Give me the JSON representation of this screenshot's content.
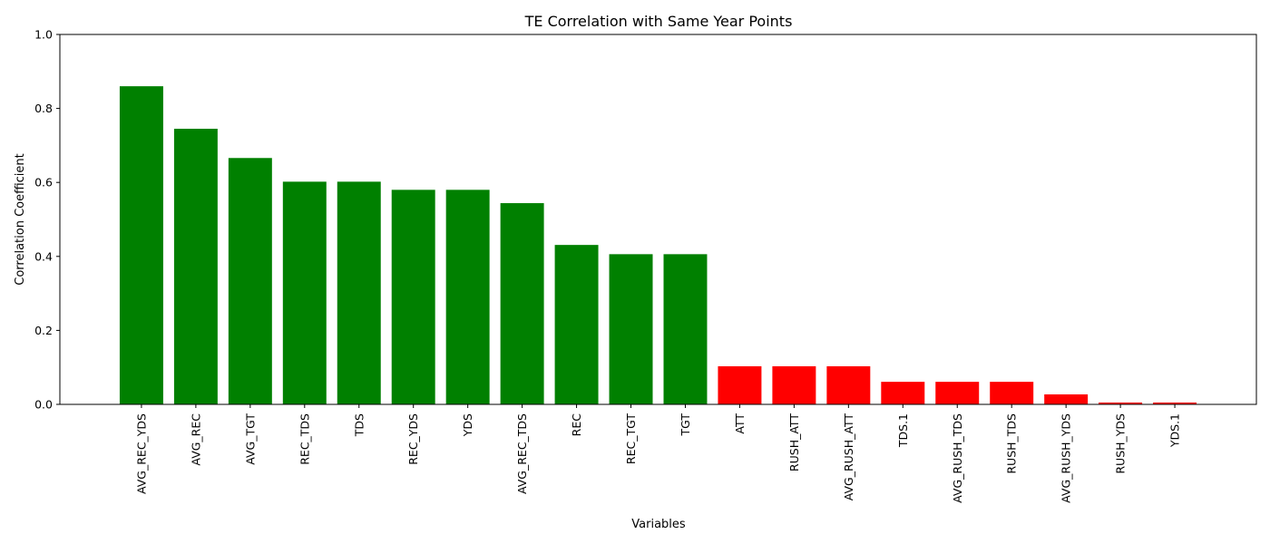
{
  "chart_data": {
    "type": "bar",
    "title": "TE Correlation with Same Year Points",
    "xlabel": "Variables",
    "ylabel": "Correlation Coefficient",
    "ylim": [
      0,
      1
    ],
    "yticks": [
      "0.0",
      "0.2",
      "0.4",
      "0.6",
      "0.8",
      "1.0"
    ],
    "grid": false,
    "categories": [
      "AVG_REC_YDS",
      "AVG_REC",
      "AVG_TGT",
      "REC_TDS",
      "TDS",
      "REC_YDS",
      "YDS",
      "AVG_REC_TDS",
      "REC",
      "REC_TGT",
      "TGT",
      "ATT",
      "RUSH_ATT",
      "AVG_RUSH_ATT",
      "TDS.1",
      "AVG_RUSH_TDS",
      "RUSH_TDS",
      "AVG_RUSH_YDS",
      "RUSH_YDS",
      "YDS.1"
    ],
    "values": [
      0.86,
      0.745,
      0.666,
      0.602,
      0.602,
      0.58,
      0.58,
      0.544,
      0.431,
      0.406,
      0.406,
      0.103,
      0.103,
      0.103,
      0.061,
      0.061,
      0.061,
      0.027,
      0.005,
      0.005
    ],
    "colors": [
      "#008000",
      "#008000",
      "#008000",
      "#008000",
      "#008000",
      "#008000",
      "#008000",
      "#008000",
      "#008000",
      "#008000",
      "#008000",
      "#ff0000",
      "#ff0000",
      "#ff0000",
      "#ff0000",
      "#ff0000",
      "#ff0000",
      "#ff0000",
      "#ff0000",
      "#ff0000"
    ]
  }
}
